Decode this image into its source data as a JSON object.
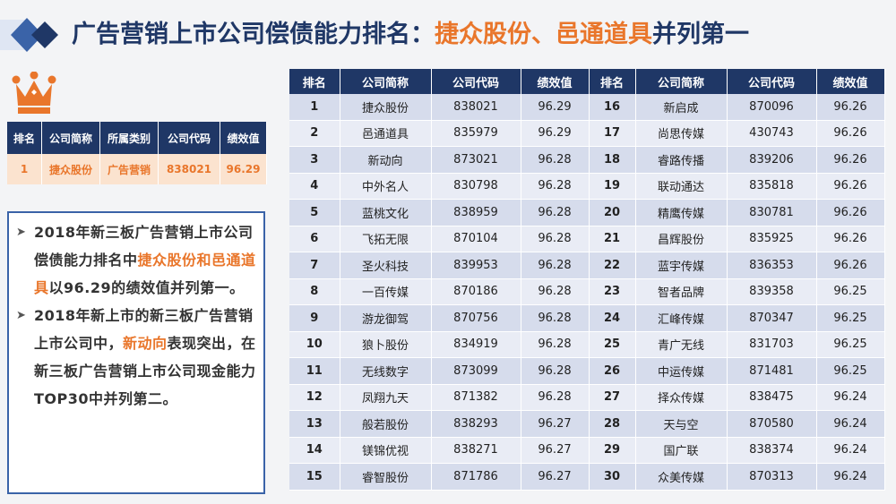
{
  "slide": {
    "title_prefix": "广告营销上市公司偿债能力排名：",
    "title_highlight": "捷众股份、邑通道具",
    "title_suffix": "并列第一",
    "accent_color": "#e9762b",
    "primary_color": "#1f3766"
  },
  "icons": {
    "logo": "diamond-logo-icon",
    "crown": "crown-icon",
    "bullet": "arrow-bullet-icon"
  },
  "summary_table": {
    "headers": [
      "排名",
      "公司简称",
      "所属类别",
      "公司代码",
      "绩效值"
    ],
    "row": [
      "1",
      "捷众股份",
      "广告营销",
      "838021",
      "96.29"
    ]
  },
  "bullets": [
    {
      "parts": [
        {
          "text": "2018年新三板广告营销上市公司偿债能力排名中",
          "hl": false
        },
        {
          "text": "捷众股份和邑通道具",
          "hl": true
        },
        {
          "text": "以96.29的绩效值并列第一。",
          "hl": false
        }
      ]
    },
    {
      "parts": [
        {
          "text": "2018年新上市的新三板广告营销上市公司中，",
          "hl": false
        },
        {
          "text": "新动向",
          "hl": true
        },
        {
          "text": "表现突出，在新三板广告营销上市公司现金能力TOP30中并列第二。",
          "hl": false
        }
      ]
    }
  ],
  "main_table": {
    "headers": [
      "排名",
      "公司简称",
      "公司代码",
      "绩效值",
      "排名",
      "公司简称",
      "公司代码",
      "绩效值"
    ],
    "rows": [
      [
        "1",
        "捷众股份",
        "838021",
        "96.29",
        "16",
        "新启成",
        "870096",
        "96.26"
      ],
      [
        "2",
        "邑通道具",
        "835979",
        "96.29",
        "17",
        "尚思传媒",
        "430743",
        "96.26"
      ],
      [
        "3",
        "新动向",
        "873021",
        "96.28",
        "18",
        "睿路传播",
        "839206",
        "96.26"
      ],
      [
        "4",
        "中外名人",
        "830798",
        "96.28",
        "19",
        "联动通达",
        "835818",
        "96.26"
      ],
      [
        "5",
        "蓝桃文化",
        "838959",
        "96.28",
        "20",
        "精鹰传媒",
        "830781",
        "96.26"
      ],
      [
        "6",
        "飞拓无限",
        "870104",
        "96.28",
        "21",
        "昌辉股份",
        "835925",
        "96.26"
      ],
      [
        "7",
        "圣火科技",
        "839953",
        "96.28",
        "22",
        "蓝宇传媒",
        "836353",
        "96.26"
      ],
      [
        "8",
        "一百传媒",
        "870186",
        "96.28",
        "23",
        "智者品牌",
        "839358",
        "96.25"
      ],
      [
        "9",
        "游龙御驾",
        "870756",
        "96.28",
        "24",
        "汇峰传媒",
        "870347",
        "96.25"
      ],
      [
        "10",
        "狼卜股份",
        "834919",
        "96.28",
        "25",
        "青广无线",
        "831703",
        "96.25"
      ],
      [
        "11",
        "无线数字",
        "873099",
        "96.28",
        "26",
        "中运传媒",
        "871481",
        "96.25"
      ],
      [
        "12",
        "凤翔九天",
        "871382",
        "96.28",
        "27",
        "择众传媒",
        "838475",
        "96.24"
      ],
      [
        "13",
        "般若股份",
        "838293",
        "96.27",
        "28",
        "天与空",
        "870580",
        "96.24"
      ],
      [
        "14",
        "镁锦优视",
        "838271",
        "96.27",
        "29",
        "国广联",
        "838374",
        "96.24"
      ],
      [
        "15",
        "睿智股份",
        "871786",
        "96.27",
        "30",
        "众美传媒",
        "870313",
        "96.24"
      ]
    ]
  }
}
